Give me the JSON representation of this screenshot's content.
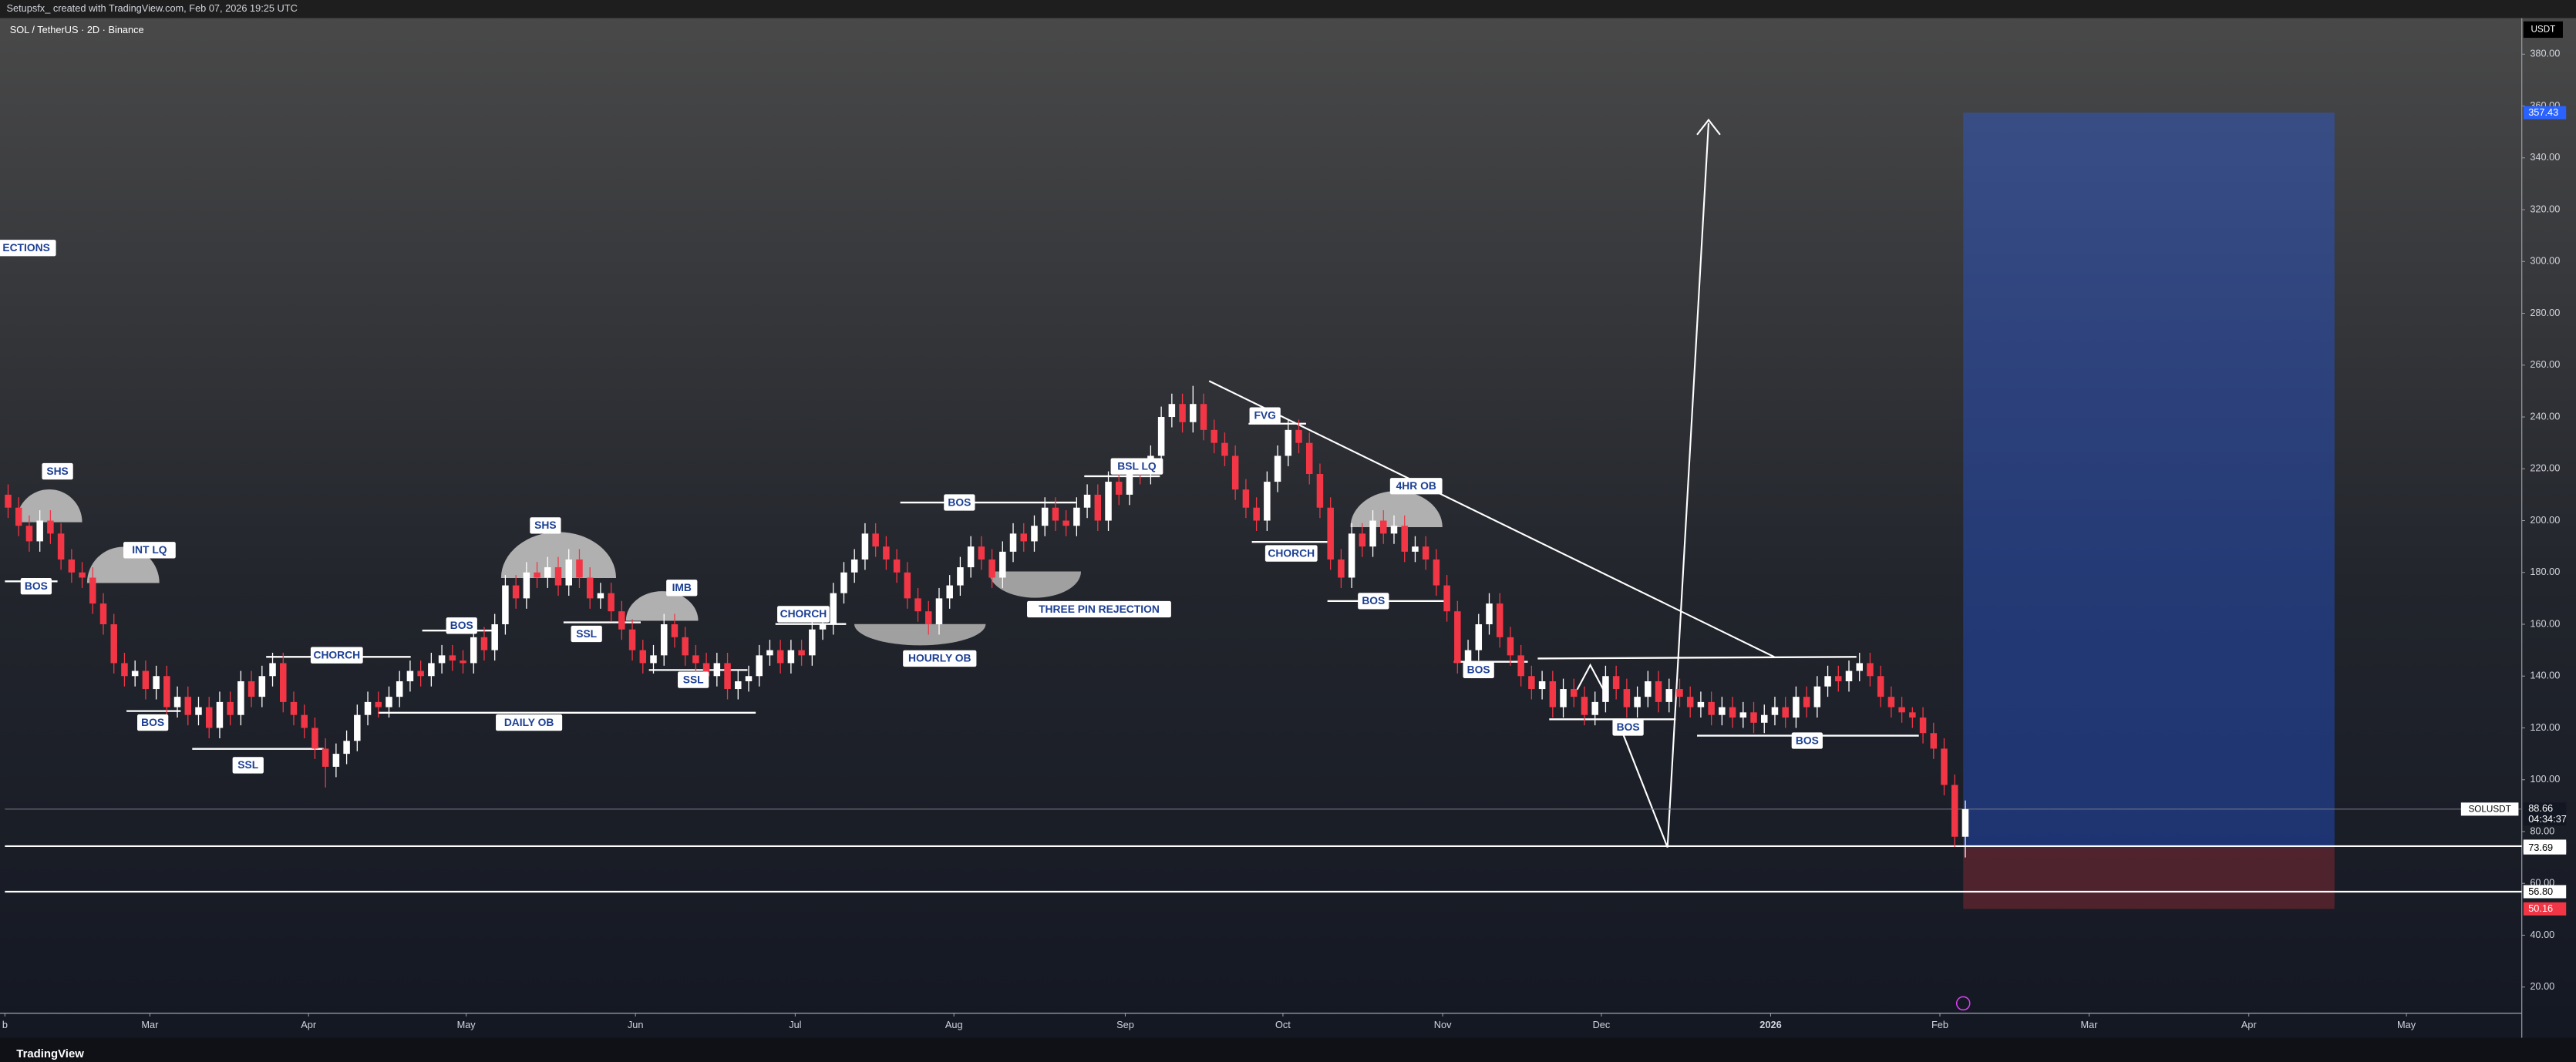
{
  "chart_data": {
    "type": "candlestick",
    "caption": "Setupsfx_ created with TradingView.com, Feb 07, 2026 19:25 UTC",
    "title": "SOL / TetherUS · 2D · Binance",
    "logo": "TradingView",
    "axis_unit": "USDT",
    "up_color": "#ffffff",
    "down_color": "#f23645",
    "xlim": [
      -0.3,
      237.6
    ],
    "xticks": [
      {
        "value": -0.3,
        "label": "b"
      },
      {
        "value": 13.4,
        "label": "Mar"
      },
      {
        "value": 28.4,
        "label": "Apr"
      },
      {
        "value": 43.3,
        "label": "May"
      },
      {
        "value": 59.3,
        "label": "Jun"
      },
      {
        "value": 74.4,
        "label": "Jul"
      },
      {
        "value": 89.4,
        "label": "Aug"
      },
      {
        "value": 105.6,
        "label": "Sep"
      },
      {
        "value": 120.5,
        "label": "Oct"
      },
      {
        "value": 135.6,
        "label": "Nov"
      },
      {
        "value": 150.6,
        "label": "Dec"
      },
      {
        "value": 166.6,
        "label": "2026"
      },
      {
        "value": 182.6,
        "label": "Feb"
      },
      {
        "value": 196.7,
        "label": "Mar"
      },
      {
        "value": 211.8,
        "label": "Apr"
      },
      {
        "value": 226.7,
        "label": "May"
      }
    ],
    "ylim": [
      9.9,
      393.3
    ],
    "yticks": [
      {
        "value": 20,
        "label": "20.00"
      },
      {
        "value": 40,
        "label": "40.00"
      },
      {
        "value": 60,
        "label": "60.00"
      },
      {
        "value": 80,
        "label": "80.00"
      },
      {
        "value": 100,
        "label": "100.00"
      },
      {
        "value": 120,
        "label": "120.00"
      },
      {
        "value": 140,
        "label": "140.00"
      },
      {
        "value": 160,
        "label": "160.00"
      },
      {
        "value": 180,
        "label": "180.00"
      },
      {
        "value": 200,
        "label": "200.00"
      },
      {
        "value": 220,
        "label": "220.00"
      },
      {
        "value": 240,
        "label": "240.00"
      },
      {
        "value": 260,
        "label": "260.00"
      },
      {
        "value": 280,
        "label": "280.00"
      },
      {
        "value": 300,
        "label": "300.00"
      },
      {
        "value": 320,
        "label": "320.00"
      },
      {
        "value": 340,
        "label": "340.00"
      },
      {
        "value": 360,
        "label": "360.00"
      },
      {
        "value": 380,
        "label": "380.00"
      }
    ],
    "series": {
      "name": "SOLUSDT",
      "countdown": "04:34:37",
      "open": [
        210,
        205,
        198,
        192,
        200,
        195,
        185,
        180,
        178,
        168,
        160,
        145,
        140,
        142,
        135,
        140,
        128,
        132,
        125,
        128,
        120,
        130,
        125,
        138,
        132,
        140,
        145,
        130,
        125,
        120,
        112,
        105,
        110,
        115,
        125,
        130,
        128,
        132,
        138,
        142,
        140,
        145,
        148,
        146,
        145,
        155,
        150,
        160,
        175,
        170,
        180,
        178,
        182,
        175,
        185,
        178,
        170,
        172,
        165,
        158,
        150,
        145,
        148,
        160,
        155,
        148,
        145,
        140,
        145,
        135,
        138,
        140,
        148,
        150,
        145,
        150,
        148,
        158,
        160,
        172,
        180,
        185,
        195,
        190,
        185,
        180,
        170,
        165,
        160,
        170,
        175,
        182,
        190,
        185,
        178,
        188,
        195,
        192,
        198,
        205,
        200,
        198,
        205,
        210,
        200,
        215,
        210,
        220,
        218,
        225,
        240,
        245,
        238,
        245,
        235,
        230,
        225,
        212,
        205,
        200,
        215,
        225,
        235,
        230,
        218,
        205,
        185,
        178,
        195,
        190,
        200,
        195,
        198,
        188,
        190,
        185,
        175,
        165,
        145,
        150,
        160,
        168,
        155,
        148,
        140,
        135,
        138,
        128,
        135,
        132,
        125,
        130,
        140,
        135,
        128,
        132,
        138,
        130,
        135,
        132,
        128,
        130,
        125,
        128,
        124,
        126,
        122,
        125,
        128,
        124,
        132,
        128,
        136,
        140,
        138,
        142,
        145,
        140,
        132,
        128,
        126,
        124,
        118,
        112,
        98,
        78
      ],
      "high": [
        214,
        209,
        202,
        204,
        204,
        199,
        189,
        184,
        182,
        172,
        164,
        149,
        146,
        146,
        144,
        144,
        136,
        136,
        132,
        132,
        134,
        134,
        142,
        142,
        144,
        149,
        149,
        134,
        129,
        124,
        116,
        114,
        119,
        129,
        134,
        134,
        136,
        142,
        146,
        146,
        149,
        152,
        152,
        150,
        159,
        159,
        164,
        179,
        179,
        184,
        184,
        186,
        186,
        189,
        189,
        182,
        176,
        176,
        169,
        162,
        154,
        152,
        164,
        164,
        159,
        152,
        149,
        149,
        149,
        142,
        144,
        152,
        154,
        154,
        154,
        154,
        162,
        164,
        176,
        184,
        189,
        199,
        199,
        194,
        189,
        184,
        174,
        169,
        174,
        179,
        186,
        194,
        194,
        189,
        192,
        199,
        199,
        202,
        209,
        209,
        204,
        209,
        214,
        214,
        219,
        219,
        224,
        224,
        229,
        244,
        249,
        249,
        252,
        249,
        239,
        234,
        229,
        216,
        209,
        219,
        229,
        239,
        239,
        234,
        222,
        209,
        189,
        199,
        199,
        204,
        204,
        202,
        202,
        194,
        194,
        189,
        179,
        169,
        154,
        164,
        172,
        172,
        159,
        152,
        144,
        142,
        142,
        139,
        139,
        136,
        134,
        144,
        144,
        139,
        136,
        142,
        142,
        139,
        139,
        136,
        134,
        134,
        132,
        132,
        130,
        130,
        129,
        132,
        132,
        136,
        136,
        140,
        144,
        144,
        146,
        149,
        149,
        144,
        136,
        132,
        128,
        128,
        122,
        116,
        102,
        92
      ],
      "low": [
        201,
        194,
        188,
        188,
        191,
        181,
        176,
        174,
        164,
        156,
        141,
        136,
        136,
        131,
        131,
        124,
        124,
        121,
        121,
        116,
        116,
        121,
        121,
        128,
        128,
        136,
        126,
        121,
        116,
        108,
        97,
        101,
        106,
        111,
        121,
        124,
        124,
        128,
        134,
        136,
        136,
        141,
        142,
        141,
        141,
        146,
        146,
        156,
        166,
        166,
        174,
        174,
        171,
        171,
        174,
        166,
        166,
        161,
        154,
        146,
        141,
        141,
        144,
        151,
        144,
        141,
        136,
        136,
        131,
        131,
        134,
        136,
        144,
        141,
        141,
        144,
        144,
        154,
        156,
        168,
        176,
        181,
        186,
        181,
        176,
        166,
        161,
        156,
        156,
        166,
        171,
        178,
        181,
        174,
        174,
        184,
        188,
        188,
        194,
        196,
        194,
        194,
        201,
        196,
        196,
        206,
        206,
        214,
        214,
        221,
        236,
        234,
        234,
        231,
        226,
        221,
        208,
        201,
        196,
        196,
        211,
        221,
        226,
        214,
        201,
        181,
        174,
        174,
        186,
        186,
        191,
        191,
        184,
        184,
        181,
        171,
        161,
        141,
        141,
        146,
        156,
        151,
        144,
        136,
        131,
        131,
        124,
        124,
        128,
        121,
        121,
        126,
        131,
        124,
        124,
        128,
        126,
        126,
        128,
        124,
        124,
        121,
        121,
        120,
        120,
        118,
        118,
        121,
        120,
        120,
        124,
        124,
        132,
        134,
        134,
        138,
        136,
        128,
        124,
        122,
        120,
        114,
        108,
        94,
        74,
        70
      ],
      "close": [
        205,
        198,
        192,
        200,
        195,
        185,
        180,
        178,
        168,
        160,
        145,
        140,
        142,
        135,
        140,
        128,
        132,
        125,
        128,
        120,
        130,
        125,
        138,
        132,
        140,
        145,
        130,
        125,
        120,
        112,
        105,
        110,
        115,
        125,
        130,
        128,
        132,
        138,
        142,
        140,
        145,
        148,
        146,
        145,
        155,
        150,
        160,
        175,
        170,
        180,
        178,
        182,
        175,
        185,
        178,
        170,
        172,
        165,
        158,
        150,
        145,
        148,
        160,
        155,
        148,
        145,
        140,
        145,
        135,
        138,
        140,
        148,
        150,
        145,
        150,
        148,
        158,
        160,
        172,
        180,
        185,
        195,
        190,
        185,
        180,
        170,
        165,
        160,
        170,
        175,
        182,
        190,
        185,
        178,
        188,
        195,
        192,
        198,
        205,
        200,
        198,
        205,
        210,
        200,
        215,
        210,
        220,
        218,
        225,
        240,
        245,
        238,
        245,
        235,
        230,
        225,
        212,
        205,
        200,
        215,
        225,
        235,
        230,
        218,
        205,
        185,
        178,
        195,
        190,
        200,
        195,
        198,
        188,
        190,
        185,
        175,
        165,
        145,
        150,
        160,
        168,
        155,
        148,
        140,
        135,
        138,
        128,
        135,
        132,
        125,
        130,
        140,
        135,
        128,
        132,
        138,
        130,
        135,
        132,
        128,
        130,
        125,
        128,
        124,
        126,
        122,
        125,
        128,
        124,
        132,
        128,
        136,
        140,
        138,
        142,
        145,
        140,
        132,
        128,
        126,
        124,
        118,
        112,
        98,
        78,
        88.66
      ]
    },
    "levels": [
      74.36,
      {
        "value": 56.8,
        "label": "56.80"
      }
    ],
    "position": {
      "target": 357.43,
      "entry": 73.69,
      "stop": 50.16,
      "target_color": "#2962ff",
      "stop_color": "#f23645"
    },
    "annotations": [
      "ECTIONS",
      "SHS",
      "INT LQ",
      "BOS",
      "BOS",
      "SSL",
      "CHORCH",
      "BOS",
      "DAILY OB",
      "SHS",
      "SSL",
      "IMB",
      "SSL",
      "CHORCH",
      "HOURLY OB",
      "BOS",
      "THREE PIN REJECTION",
      "BSL LQ",
      "FVG",
      "CHORCH",
      "4HR OB",
      "BOS",
      "BOS",
      "BOS",
      "BOS"
    ]
  }
}
